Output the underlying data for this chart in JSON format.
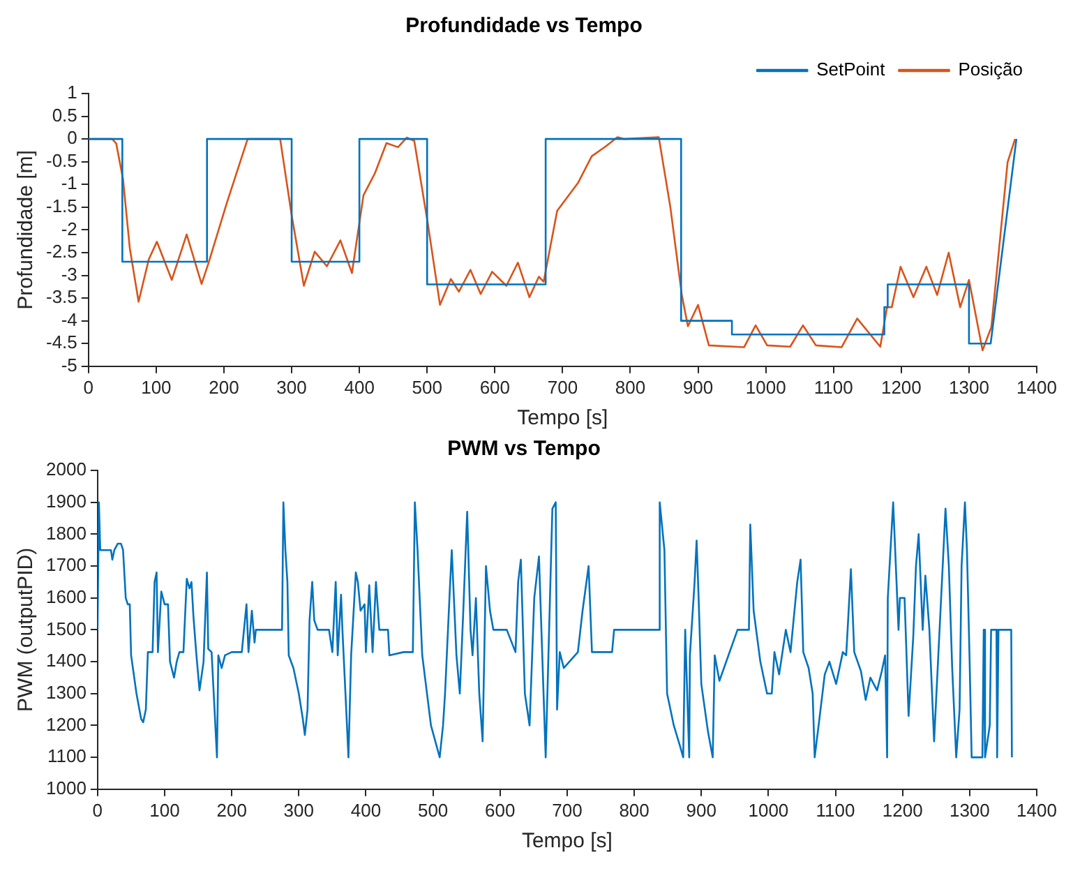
{
  "chart_data": [
    {
      "type": "line",
      "title": "Profundidade vs Tempo",
      "xlabel": "Tempo [s]",
      "ylabel": "Profundidade [m]",
      "xlim": [
        0,
        1400
      ],
      "xticks": [
        0,
        100,
        200,
        300,
        400,
        500,
        600,
        700,
        800,
        900,
        1000,
        1100,
        1200,
        1300,
        1400
      ],
      "ylim": [
        -5,
        1
      ],
      "yticks": [
        -5,
        -4.5,
        -4,
        -3.5,
        -3,
        -2.5,
        -2,
        -1.5,
        -1,
        -0.5,
        0,
        0.5,
        1
      ],
      "legend": "top right",
      "grid": false,
      "series": [
        {
          "name": "SetPoint",
          "color": "#0072bd",
          "x": [
            0,
            50,
            50,
            175,
            175,
            300,
            300,
            400,
            400,
            500,
            500,
            675,
            675,
            875,
            875,
            950,
            950,
            1175,
            1175,
            1180,
            1180,
            1300,
            1300,
            1332,
            1370
          ],
          "values": [
            0,
            0,
            -2.7,
            -2.7,
            0,
            0,
            -2.7,
            -2.7,
            0,
            0,
            -3.2,
            -3.2,
            0,
            0,
            -4,
            -4,
            -4.3,
            -4.3,
            -3.7,
            -3.7,
            -3.2,
            -3.2,
            -4.5,
            -4.5,
            0
          ]
        },
        {
          "name": "Posição",
          "color": "#d95319",
          "x": [
            0,
            35,
            41,
            51,
            61,
            74,
            89,
            101,
            123,
            145,
            167,
            177,
            204,
            235,
            283,
            300,
            318,
            334,
            352,
            372,
            389,
            406,
            423,
            440,
            457,
            470,
            481,
            501,
            519,
            535,
            547,
            564,
            579,
            596,
            617,
            634,
            651,
            665,
            672,
            692,
            723,
            743,
            764,
            781,
            791,
            842,
            859,
            876,
            885,
            900,
            916,
            968,
            985,
            1002,
            1036,
            1055,
            1074,
            1112,
            1135,
            1169,
            1179,
            1186,
            1199,
            1218,
            1237,
            1253,
            1270,
            1287,
            1300,
            1320,
            1333,
            1357,
            1368
          ],
          "values": [
            0,
            0,
            -0.1,
            -0.88,
            -2.4,
            -3.58,
            -2.65,
            -2.26,
            -3.1,
            -2.1,
            -3.19,
            -2.74,
            -1.42,
            0,
            0,
            -1.68,
            -3.23,
            -2.48,
            -2.8,
            -2.23,
            -2.95,
            -1.24,
            -0.75,
            -0.09,
            -0.18,
            0.03,
            -0.04,
            -1.86,
            -3.65,
            -3.08,
            -3.36,
            -2.88,
            -3.41,
            -2.92,
            -3.23,
            -2.72,
            -3.48,
            -3.03,
            -3.14,
            -1.58,
            -0.96,
            -0.38,
            -0.16,
            0.04,
            0,
            0.04,
            -1.49,
            -3.43,
            -4.12,
            -3.65,
            -4.54,
            -4.58,
            -4.1,
            -4.54,
            -4.57,
            -4.1,
            -4.54,
            -4.58,
            -3.95,
            -4.57,
            -3.7,
            -3.7,
            -2.81,
            -3.48,
            -2.81,
            -3.43,
            -2.5,
            -3.7,
            -3.1,
            -4.65,
            -4.14,
            -0.51,
            0
          ]
        }
      ]
    },
    {
      "type": "line",
      "title": "PWM vs Tempo",
      "xlabel": "Tempo [s]",
      "ylabel": "PWM (outputPID)",
      "xlim": [
        0,
        1400
      ],
      "xticks": [
        0,
        100,
        200,
        300,
        400,
        500,
        600,
        700,
        800,
        900,
        1000,
        1100,
        1200,
        1300,
        1400
      ],
      "ylim": [
        1000,
        2000
      ],
      "yticks": [
        1000,
        1100,
        1200,
        1300,
        1400,
        1500,
        1600,
        1700,
        1800,
        1900,
        2000
      ],
      "legend": false,
      "grid": false,
      "series": [
        {
          "color": "#0072bd",
          "x": [
            0,
            2,
            4,
            20,
            22,
            25,
            30,
            35,
            38,
            42,
            45,
            48,
            50,
            58,
            65,
            68,
            72,
            75,
            82,
            85,
            88,
            90,
            95,
            100,
            105,
            108,
            114,
            118,
            122,
            128,
            133,
            137,
            140,
            143,
            147,
            152,
            158,
            163,
            165,
            170,
            178,
            180,
            185,
            190,
            200,
            215,
            222,
            225,
            230,
            234,
            236,
            275,
            277,
            280,
            283,
            285,
            292,
            300,
            306,
            309,
            313,
            316,
            320,
            323,
            328,
            345,
            350,
            355,
            358,
            363,
            365,
            370,
            374,
            378,
            385,
            388,
            392,
            398,
            400,
            405,
            410,
            415,
            420,
            433,
            435,
            456,
            470,
            473,
            477,
            484,
            497,
            510,
            515,
            518,
            525,
            528,
            535,
            540,
            545,
            551,
            556,
            559,
            564,
            569,
            574,
            579,
            585,
            590,
            610,
            623,
            627,
            631,
            637,
            644,
            651,
            658,
            668,
            678,
            683,
            685,
            689,
            695,
            716,
            723,
            732,
            737,
            743,
            767,
            770,
            837,
            838,
            845,
            849,
            859,
            869,
            873,
            876,
            882,
            883,
            890,
            893,
            896,
            900,
            910,
            917,
            920,
            927,
            954,
            971,
            973,
            978,
            988,
            998,
            1005,
            1009,
            1016,
            1026,
            1033,
            1043,
            1048,
            1052,
            1060,
            1066,
            1069,
            1076,
            1084,
            1091,
            1101,
            1111,
            1116,
            1123,
            1128,
            1138,
            1145,
            1152,
            1162,
            1169,
            1174,
            1177,
            1178,
            1186,
            1191,
            1194,
            1196,
            1203,
            1209,
            1216,
            1220,
            1224,
            1230,
            1234,
            1240,
            1247,
            1254,
            1261,
            1264,
            1269,
            1274,
            1280,
            1285,
            1288,
            1293,
            1296,
            1300,
            1303,
            1319,
            1321,
            1323,
            1330,
            1332,
            1340,
            1341,
            1343,
            1362,
            1363
          ],
          "values": [
            1500,
            1900,
            1750,
            1750,
            1720,
            1750,
            1770,
            1770,
            1750,
            1600,
            1580,
            1580,
            1420,
            1300,
            1220,
            1210,
            1250,
            1430,
            1430,
            1650,
            1680,
            1430,
            1620,
            1580,
            1580,
            1400,
            1350,
            1400,
            1430,
            1430,
            1660,
            1630,
            1650,
            1540,
            1430,
            1310,
            1400,
            1680,
            1440,
            1430,
            1100,
            1420,
            1380,
            1420,
            1430,
            1430,
            1580,
            1430,
            1560,
            1460,
            1500,
            1500,
            1900,
            1750,
            1650,
            1420,
            1380,
            1300,
            1220,
            1170,
            1250,
            1530,
            1650,
            1530,
            1500,
            1500,
            1430,
            1650,
            1420,
            1610,
            1500,
            1280,
            1100,
            1420,
            1680,
            1650,
            1560,
            1580,
            1430,
            1640,
            1430,
            1650,
            1500,
            1500,
            1420,
            1430,
            1430,
            1900,
            1750,
            1420,
            1200,
            1100,
            1200,
            1300,
            1620,
            1750,
            1420,
            1300,
            1550,
            1870,
            1500,
            1420,
            1600,
            1300,
            1150,
            1700,
            1560,
            1500,
            1500,
            1430,
            1650,
            1720,
            1300,
            1200,
            1600,
            1730,
            1100,
            1880,
            1900,
            1250,
            1430,
            1380,
            1430,
            1560,
            1700,
            1430,
            1430,
            1430,
            1500,
            1500,
            1900,
            1750,
            1300,
            1200,
            1130,
            1100,
            1500,
            1100,
            1420,
            1650,
            1780,
            1600,
            1330,
            1180,
            1100,
            1420,
            1340,
            1500,
            1500,
            1830,
            1560,
            1400,
            1300,
            1300,
            1430,
            1360,
            1500,
            1430,
            1650,
            1720,
            1430,
            1380,
            1300,
            1100,
            1220,
            1360,
            1400,
            1330,
            1430,
            1420,
            1690,
            1430,
            1370,
            1280,
            1350,
            1310,
            1370,
            1420,
            1100,
            1600,
            1900,
            1650,
            1500,
            1600,
            1600,
            1230,
            1480,
            1700,
            1800,
            1500,
            1670,
            1500,
            1150,
            1450,
            1750,
            1880,
            1700,
            1380,
            1100,
            1250,
            1700,
            1900,
            1750,
            1400,
            1100,
            1100,
            1500,
            1100,
            1200,
            1500,
            1500,
            1100,
            1500,
            1500,
            1100
          ]
        }
      ]
    }
  ]
}
